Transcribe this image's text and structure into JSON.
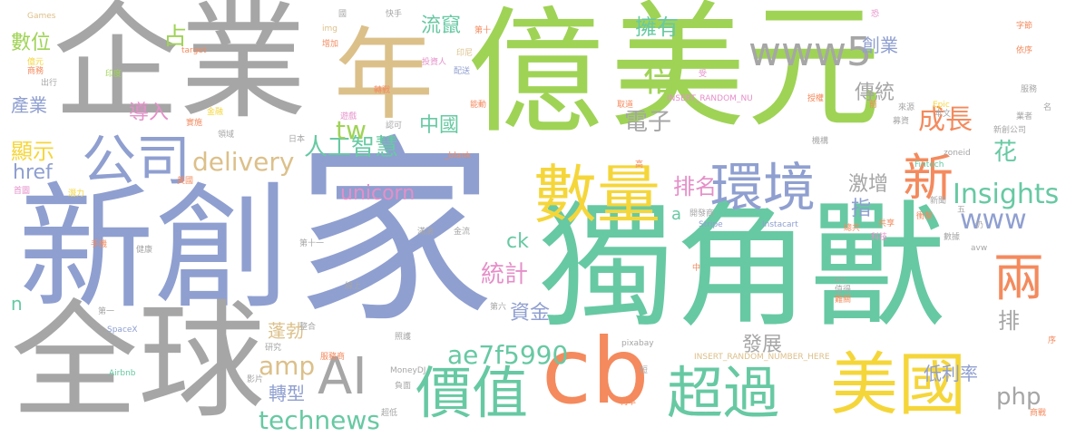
{
  "palette": {
    "green": "#9fd356",
    "gray": "#a6a6a6",
    "blue": "#8f9fd0",
    "teal": "#67c9a3",
    "yellow": "#f5d63a",
    "tan": "#dcc08a",
    "orange": "#f48a5d",
    "pink": "#e58fc9"
  },
  "words": {
    "jia": "家",
    "yi": "億",
    "meiyuan": "美元",
    "qiye": "企業",
    "dujiaoshou": "獨角獸",
    "xinchuang": "新創",
    "quanqiu": "全球",
    "nian": "年",
    "cb": "cb",
    "meiguo": "美國",
    "shuliang": "數量",
    "huanjing": "環境",
    "jiazhi": "價值",
    "chaoguo": "超過",
    "gongsi": "公司",
    "ai": "AI",
    "www5": "www5",
    "xin": "新",
    "liang": "兩",
    "insights": "Insights",
    "www": "www",
    "rengongzhihui": "人工智慧",
    "delivery": "delivery",
    "unicorn": "unicorn",
    "amp": "amp",
    "technews": "technews",
    "ae7f5990": "ae7f5990",
    "php": "php",
    "tw": "tw",
    "href": "href",
    "pengbo": "蓬勃",
    "tongji": "統計",
    "zhongguo": "中國",
    "paiming": "排名",
    "dianzi": "電子",
    "bei": "倍",
    "chengzhang": "成長",
    "chuantong": "傳統",
    "chuangye": "創業",
    "yongyou": "擁有",
    "liucuan": "流竄",
    "shuwei": "數位",
    "chanye": "產業",
    "xianshi": "顯示",
    "daoru": "導入",
    "zhan": "占",
    "fazhan": "發展",
    "dililu": "低利率",
    "zhuanxing": "轉型",
    "zijin": "資金",
    "jizeng": "激增",
    "zhi": "指",
    "hua": "花",
    "pai": "排",
    "ck": "ck",
    "a": "a",
    "n": "n",
    "small_games": "Games",
    "small_guo": "國",
    "small_kuaishou": "快手",
    "small_kong": "恐",
    "small_zijie": "字節",
    "small_yiyuan": "億元",
    "small_shangwu": "商務",
    "small_chuxing": "出行",
    "small_target": "target",
    "small_img": "img",
    "small_zengjia": "增加",
    "small_touziren": "投資人",
    "small_peisong": "配送",
    "small_yindu": "印度",
    "small_yinni": "印尼",
    "small_di10": "第十",
    "small_shou": "受",
    "small_random_nu": "INSERT_RANDOM_NU",
    "small_yicun": "依序",
    "small_fuwu": "服務",
    "small_zhuanxiang": "轉戰",
    "small_nengdong": "能動",
    "small_qudao": "取道",
    "small_shouquan": "授權",
    "small_qian": "前",
    "small_laiyuan": "來源",
    "small_yewu": "業者",
    "small_jinrong": "金融",
    "small_youxi": "遊戲",
    "small_renke": "認可",
    "small_shishi": "實施",
    "small_lingyu": "領域",
    "small_riben": "日本",
    "small_jigou": "機構",
    "small_epic": "Epic",
    "small_benwen": "本文",
    "small_mujizi": "募資",
    "small_xinchuanggongsi": "新創公司",
    "small_ming": "名",
    "small_blank": "_blank",
    "small_gao": "高",
    "small_fintech": "Fintech",
    "small_zoneid": "zoneid",
    "small_meiyuan": "美國",
    "small_shougu": "首圖",
    "small_qianli": "潛力",
    "small_jianguo": "健康",
    "small_shouji": "手機",
    "small_shangcheng": "開發商",
    "small_xinwen": "新聞",
    "small_gongxiang": "共享",
    "small_chongji": "衝擊",
    "small_wu": "五",
    "small_stripe": "Stripe",
    "small_instacart": "Instacart",
    "small_keji": "科技",
    "small_shuju": "數據",
    "small_avw": "avw",
    "small_di11": "第十一",
    "small_mandi": "滿滴",
    "small_jinliu": "金流",
    "small_jiangshang": "總共",
    "small_mian": "仍",
    "small_zhong": "中",
    "small_guanshang": "線上",
    "small_di1": "第一",
    "small_di6": "第六",
    "small_spacex": "SpaceX",
    "small_zhenghe": "整合",
    "small_zhaohu": "照護",
    "small_pixabay": "pixabay",
    "small_random_number": "INSERT_RANDOM_NUMBER_HERE",
    "small_src": "src",
    "small_zhide": "值得",
    "small_nanguan": "難關",
    "small_xu": "序",
    "small_yanjiu": "研究",
    "small_fuwushang": "服務商",
    "small_dixu": "短",
    "small_moneydj": "MoneyDJ",
    "small_yingpian": "影片",
    "small_fumian": "負面",
    "small_airbnb": "Airbnb",
    "small_chaodi": "超低",
    "small_lilv": "利率",
    "small_shangzhan": "商戰"
  }
}
